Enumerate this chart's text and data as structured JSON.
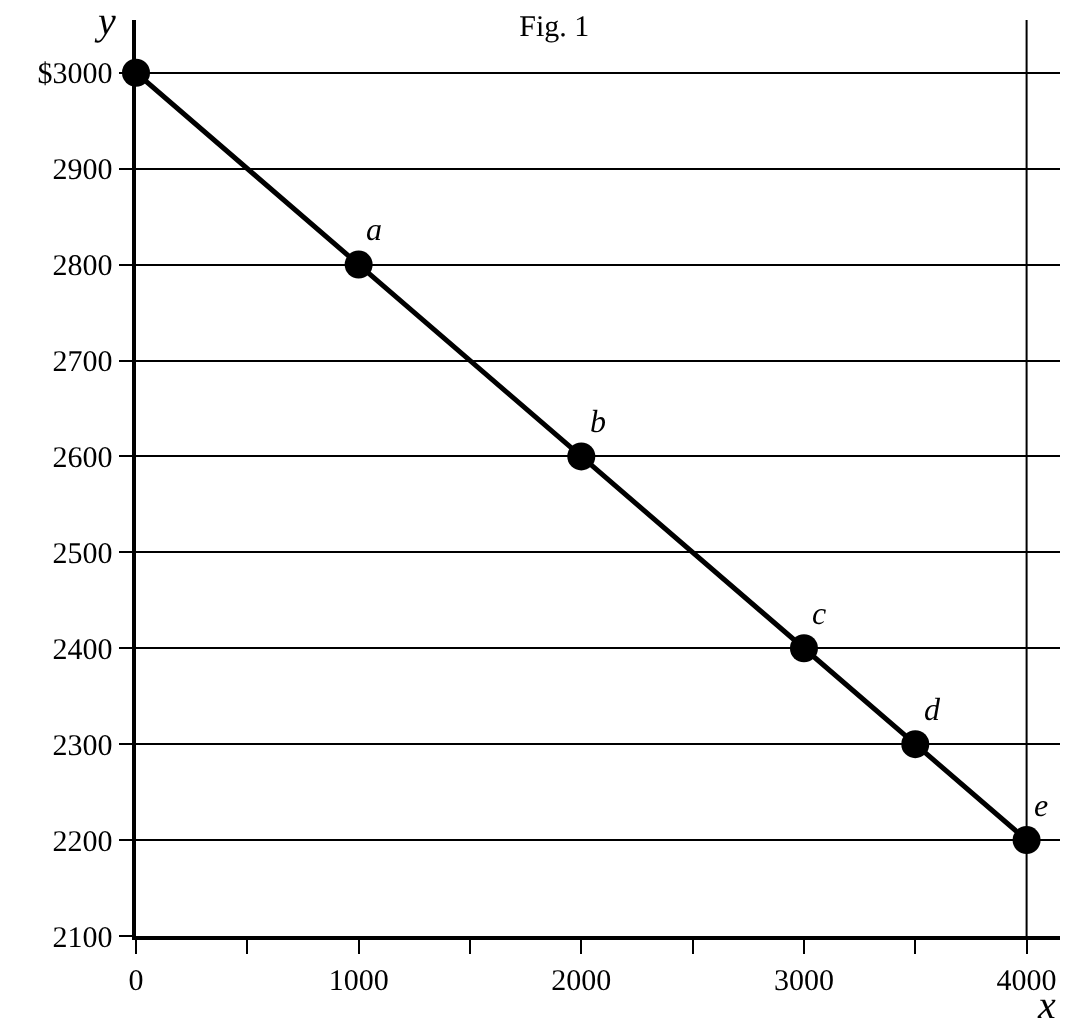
{
  "chart_data": {
    "type": "line",
    "title": "Fig. 1",
    "xlabel": "x",
    "ylabel": "y",
    "x": [
      0,
      1000,
      2000,
      3000,
      3500,
      4000
    ],
    "series": [
      {
        "color": "#000000",
        "values": [
          3000,
          2800,
          2600,
          2400,
          2300,
          2200
        ]
      }
    ],
    "xlim": [
      0,
      4150
    ],
    "ylim": [
      2100,
      3055
    ],
    "xticks": [
      0,
      {
        "value": 500,
        "label": null
      },
      1000,
      {
        "value": 1500,
        "label": null
      },
      2000,
      {
        "value": 2500,
        "label": null
      },
      3000,
      {
        "value": 3500,
        "label": null
      },
      4000
    ],
    "yticks": [
      2100,
      2200,
      2300,
      2400,
      2500,
      2600,
      2700,
      2800,
      2900,
      {
        "value": 3000,
        "label": "$3000"
      }
    ],
    "grid": "y",
    "marker": "circle",
    "line_style": "solid",
    "ref_lines": [
      {
        "axis": "x",
        "value": 4000,
        "color": "#000000"
      }
    ],
    "annotations": [
      {
        "text": "a",
        "x": 1000,
        "y": 2800
      },
      {
        "text": "b",
        "x": 2000,
        "y": 2600
      },
      {
        "text": "c",
        "x": 3000,
        "y": 2400
      },
      {
        "text": "d",
        "x": 3500,
        "y": 2300
      },
      {
        "text": "e",
        "x": 4000,
        "y": 2200
      }
    ]
  }
}
